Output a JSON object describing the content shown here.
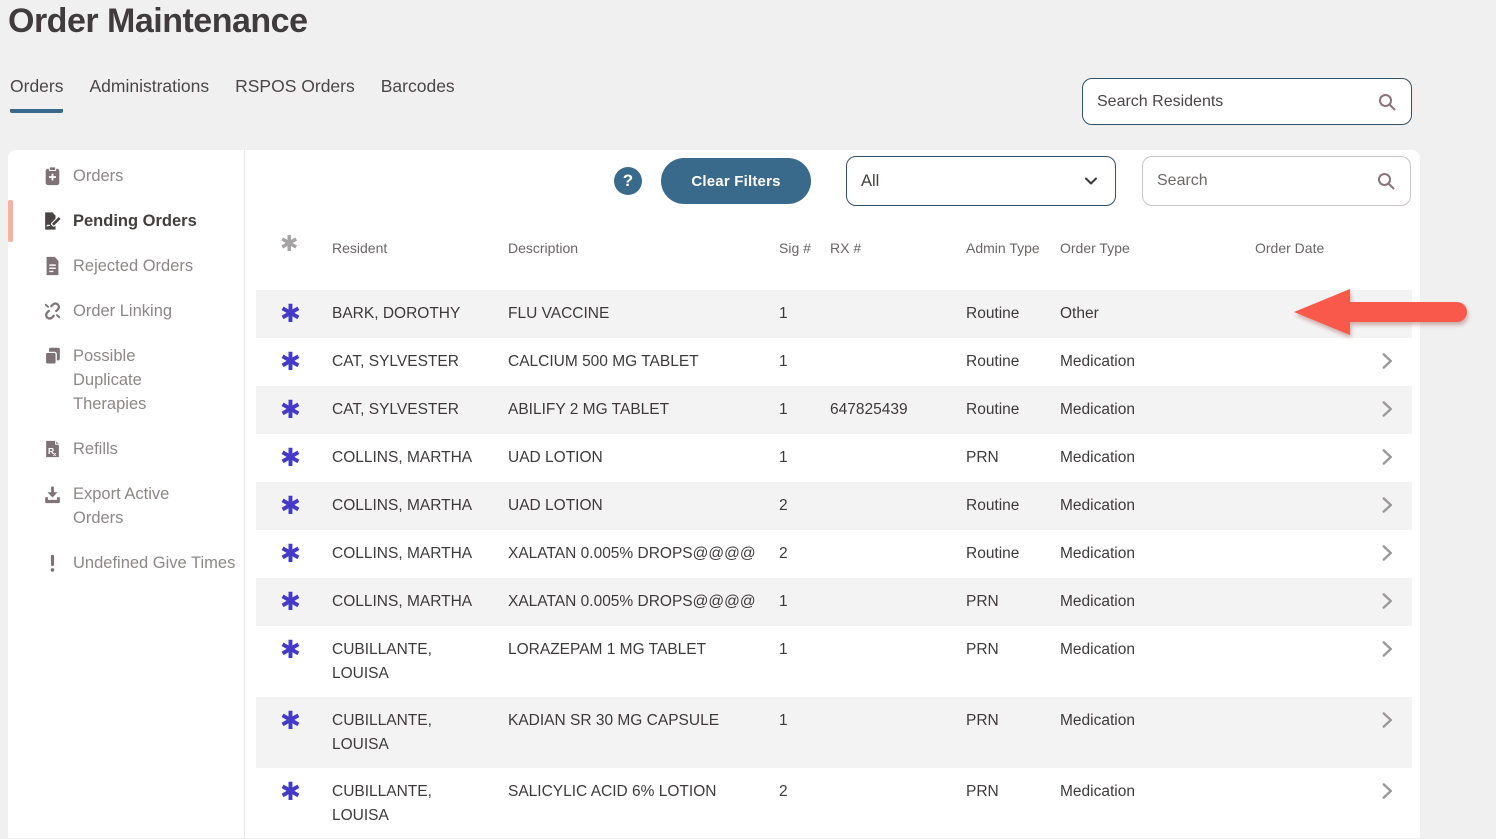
{
  "page": {
    "title": "Order Maintenance"
  },
  "tabs": [
    {
      "label": "Orders",
      "active": true
    },
    {
      "label": "Administrations",
      "active": false
    },
    {
      "label": "RSPOS Orders",
      "active": false
    },
    {
      "label": "Barcodes",
      "active": false
    }
  ],
  "resident_search": {
    "placeholder": "Search Residents",
    "icon": "search-icon"
  },
  "sidebar": {
    "items": [
      {
        "label": "Orders",
        "icon": "clipboard-medical-icon",
        "active": false,
        "wrap": false
      },
      {
        "label": "Pending Orders",
        "icon": "file-signature-icon",
        "active": true,
        "wrap": false
      },
      {
        "label": "Rejected Orders",
        "icon": "file-lines-icon",
        "active": false,
        "wrap": false
      },
      {
        "label": "Order Linking",
        "icon": "broken-link-icon",
        "active": false,
        "wrap": false
      },
      {
        "label": "Possible Duplicate Therapies",
        "icon": "copy-icon",
        "active": false,
        "wrap": true
      },
      {
        "label": "Refills",
        "icon": "file-prescription-icon",
        "active": false,
        "wrap": false
      },
      {
        "label": "Export Active Orders",
        "icon": "download-icon",
        "active": false,
        "wrap": true
      },
      {
        "label": "Undefined Give Times",
        "icon": "exclamation-icon",
        "active": false,
        "wrap": false
      }
    ]
  },
  "filters": {
    "help_label": "?",
    "clear_button_label": "Clear Filters",
    "type_select_value": "All",
    "search_placeholder": "Search"
  },
  "table": {
    "asterisk_glyph": "✱",
    "columns": [
      "Resident",
      "Description",
      "Sig #",
      "RX #",
      "Admin Type",
      "Order Type",
      "Order Date"
    ],
    "rows": [
      {
        "resident": "BARK, DOROTHY",
        "description": "FLU VACCINE",
        "sig": "1",
        "rx": "",
        "admin_type": "Routine",
        "order_type": "Other",
        "order_date": ""
      },
      {
        "resident": "CAT, SYLVESTER",
        "description": "CALCIUM 500 MG TABLET",
        "sig": "1",
        "rx": "",
        "admin_type": "Routine",
        "order_type": "Medication",
        "order_date": ""
      },
      {
        "resident": "CAT, SYLVESTER",
        "description": "ABILIFY 2 MG TABLET",
        "sig": "1",
        "rx": "647825439",
        "admin_type": "Routine",
        "order_type": "Medication",
        "order_date": ""
      },
      {
        "resident": "COLLINS, MARTHA",
        "description": "UAD LOTION",
        "sig": "1",
        "rx": "",
        "admin_type": "PRN",
        "order_type": "Medication",
        "order_date": ""
      },
      {
        "resident": "COLLINS, MARTHA",
        "description": "UAD LOTION",
        "sig": "2",
        "rx": "",
        "admin_type": "Routine",
        "order_type": "Medication",
        "order_date": ""
      },
      {
        "resident": "COLLINS, MARTHA",
        "description": "XALATAN 0.005% DROPS@@@@",
        "sig": "2",
        "rx": "",
        "admin_type": "Routine",
        "order_type": "Medication",
        "order_date": ""
      },
      {
        "resident": "COLLINS, MARTHA",
        "description": "XALATAN 0.005% DROPS@@@@",
        "sig": "1",
        "rx": "",
        "admin_type": "PRN",
        "order_type": "Medication",
        "order_date": ""
      },
      {
        "resident": "CUBILLANTE, LOUISA",
        "description": "LORAZEPAM 1 MG TABLET",
        "sig": "1",
        "rx": "",
        "admin_type": "PRN",
        "order_type": "Medication",
        "order_date": ""
      },
      {
        "resident": "CUBILLANTE, LOUISA",
        "description": "KADIAN SR 30 MG CAPSULE",
        "sig": "1",
        "rx": "",
        "admin_type": "PRN",
        "order_type": "Medication",
        "order_date": ""
      },
      {
        "resident": "CUBILLANTE, LOUISA",
        "description": "SALICYLIC ACID 6% LOTION",
        "sig": "2",
        "rx": "",
        "admin_type": "PRN",
        "order_type": "Medication",
        "order_date": ""
      }
    ]
  },
  "annotations": {
    "red_arrow_points_to_row": "BARK, DOROTHY"
  },
  "colors": {
    "accent_teal": "#3A6A8B",
    "active_item_salmon": "#F0B5A1",
    "asterisk_indigo": "#4439C8",
    "arrow_red": "#F8594B",
    "sidebar_icon": "#7E7277",
    "row_stripe": "#F4F3F4"
  }
}
